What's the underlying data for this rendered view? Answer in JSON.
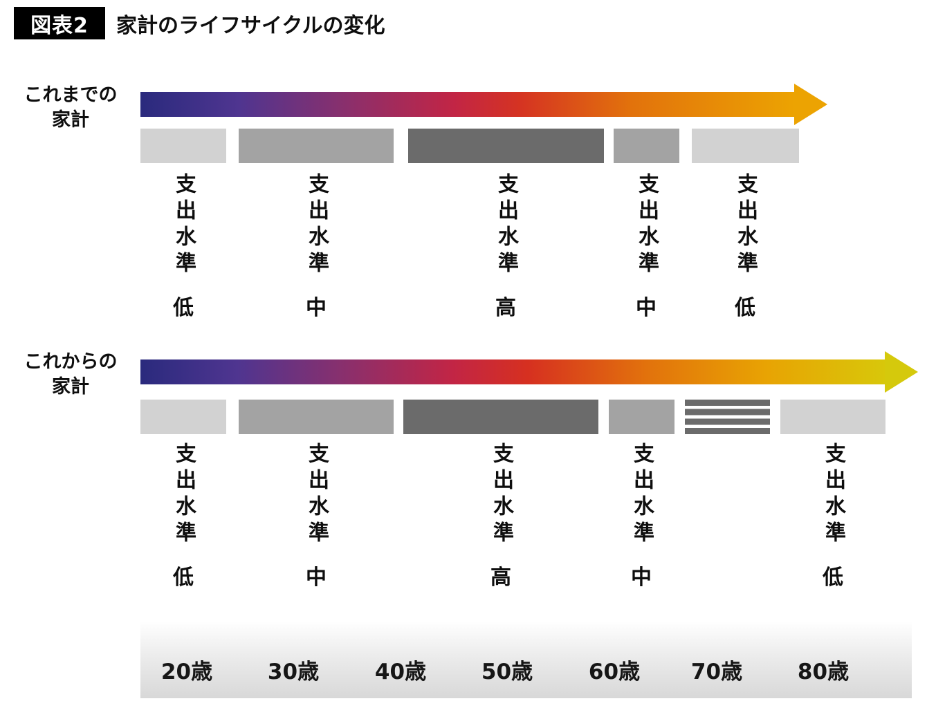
{
  "header": {
    "badge": "図表2",
    "title": "家計のライフサイクルの変化"
  },
  "sections": [
    {
      "label_line1": "これまでの",
      "label_line2": "家計",
      "bars": [
        {
          "label": "支出水準",
          "level": "低",
          "shade": "light"
        },
        {
          "label": "支出水準",
          "level": "中",
          "shade": "medium"
        },
        {
          "label": "支出水準",
          "level": "高",
          "shade": "dark"
        },
        {
          "label": "支出水準",
          "level": "中",
          "shade": "medium"
        },
        {
          "label": "支出水準",
          "level": "低",
          "shade": "light"
        }
      ]
    },
    {
      "label_line1": "これからの",
      "label_line2": "家計",
      "bars": [
        {
          "label": "支出水準",
          "level": "低",
          "shade": "light"
        },
        {
          "label": "支出水準",
          "level": "中",
          "shade": "medium"
        },
        {
          "label": "支出水準",
          "level": "高",
          "shade": "dark"
        },
        {
          "label": "支出水準",
          "level": "中",
          "shade": "medium"
        },
        {
          "label": "",
          "level": "",
          "shade": "striped"
        },
        {
          "label": "支出水準",
          "level": "低",
          "shade": "light"
        }
      ]
    }
  ],
  "axis": {
    "ticks": [
      "20歳",
      "30歳",
      "40歳",
      "50歳",
      "60歳",
      "70歳",
      "80歳"
    ]
  },
  "colors": {
    "bar_light": "#d2d2d2",
    "bar_medium": "#a3a3a3",
    "bar_dark": "#6b6b6b",
    "gradient_start": "#2a2a7d",
    "gradient_red": "#d02828",
    "gradient_end_past": "#eca302",
    "gradient_end_future": "#d5c90c",
    "badge_bg": "#000000",
    "badge_text": "#ffffff"
  }
}
